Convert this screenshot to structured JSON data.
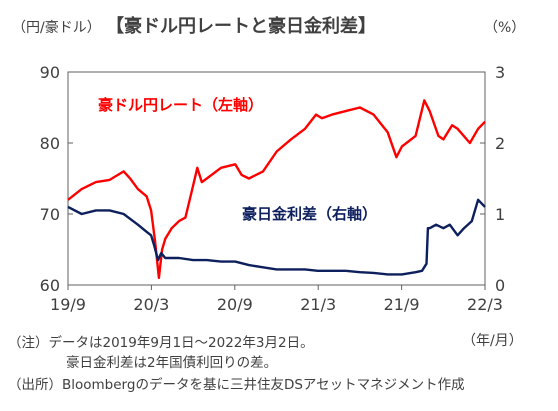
{
  "chart_data": {
    "type": "line",
    "title": "【豪ドル円レートと豪日金利差】",
    "left_unit": "（円/豪ドル）",
    "right_unit": "（%）",
    "x_unit": "（年/月）",
    "x_ticks": [
      "19/9",
      "20/3",
      "20/9",
      "21/3",
      "21/9",
      "22/3"
    ],
    "y_left_ticks": [
      "90",
      "80",
      "70",
      "60"
    ],
    "y_right_ticks": [
      "3",
      "2",
      "1",
      "0"
    ],
    "ylim_left": [
      60,
      90
    ],
    "ylim_right": [
      0,
      3
    ],
    "x_range": [
      "2019-09-01",
      "2022-03-02"
    ],
    "series": [
      {
        "name": "豪ドル円レート（左軸）",
        "axis": "left",
        "color": "#ff0000",
        "x": [
          "2019-09-01",
          "2019-10-01",
          "2019-11-01",
          "2019-12-01",
          "2020-01-01",
          "2020-01-15",
          "2020-02-01",
          "2020-02-20",
          "2020-03-01",
          "2020-03-10",
          "2020-03-18",
          "2020-03-25",
          "2020-04-01",
          "2020-04-15",
          "2020-05-01",
          "2020-05-15",
          "2020-06-01",
          "2020-06-10",
          "2020-06-20",
          "2020-07-01",
          "2020-08-01",
          "2020-09-01",
          "2020-09-15",
          "2020-10-01",
          "2020-11-01",
          "2020-12-01",
          "2021-01-01",
          "2021-02-01",
          "2021-02-25",
          "2021-03-10",
          "2021-04-01",
          "2021-05-01",
          "2021-06-01",
          "2021-07-01",
          "2021-08-01",
          "2021-08-20",
          "2021-09-01",
          "2021-10-01",
          "2021-10-20",
          "2021-11-01",
          "2021-11-20",
          "2021-12-01",
          "2021-12-20",
          "2022-01-01",
          "2022-01-28",
          "2022-02-15",
          "2022-03-02"
        ],
        "y": [
          72.0,
          73.5,
          74.5,
          74.8,
          76.0,
          75.0,
          73.5,
          72.5,
          70.5,
          66.0,
          61.0,
          65.0,
          66.5,
          68.0,
          69.0,
          69.5,
          74.0,
          76.5,
          74.5,
          75.0,
          76.5,
          77.0,
          75.5,
          75.0,
          76.0,
          78.8,
          80.5,
          82.0,
          84.0,
          83.5,
          84.0,
          84.5,
          85.0,
          84.0,
          81.5,
          78.0,
          79.5,
          81.0,
          86.0,
          84.5,
          81.0,
          80.5,
          82.5,
          82.0,
          80.0,
          82.0,
          83.0
        ]
      },
      {
        "name": "豪日金利差（右軸）",
        "axis": "right",
        "color": "#0d1f5c",
        "x": [
          "2019-09-01",
          "2019-10-01",
          "2019-11-01",
          "2019-12-01",
          "2020-01-01",
          "2020-02-01",
          "2020-02-20",
          "2020-03-01",
          "2020-03-08",
          "2020-03-16",
          "2020-03-23",
          "2020-04-01",
          "2020-05-01",
          "2020-06-01",
          "2020-07-01",
          "2020-08-01",
          "2020-09-01",
          "2020-10-01",
          "2020-11-01",
          "2020-12-01",
          "2021-01-01",
          "2021-02-01",
          "2021-03-01",
          "2021-04-01",
          "2021-05-01",
          "2021-06-01",
          "2021-07-01",
          "2021-08-01",
          "2021-09-01",
          "2021-10-01",
          "2021-10-15",
          "2021-10-25",
          "2021-10-28",
          "2021-11-01",
          "2021-11-15",
          "2021-12-01",
          "2021-12-15",
          "2022-01-01",
          "2022-01-15",
          "2022-02-01",
          "2022-02-15",
          "2022-03-02"
        ],
        "y": [
          1.1,
          1.0,
          1.05,
          1.05,
          1.0,
          0.85,
          0.75,
          0.7,
          0.55,
          0.35,
          0.45,
          0.38,
          0.38,
          0.35,
          0.35,
          0.33,
          0.33,
          0.28,
          0.25,
          0.22,
          0.22,
          0.22,
          0.2,
          0.2,
          0.2,
          0.18,
          0.17,
          0.15,
          0.15,
          0.18,
          0.2,
          0.3,
          0.8,
          0.8,
          0.85,
          0.8,
          0.85,
          0.7,
          0.8,
          0.9,
          1.2,
          1.1
        ]
      }
    ]
  },
  "notes": [
    "（注）データは2019年9月1日～2022年3月2日。",
    "豪日金利差は2年国債利回りの差。",
    "（出所）Bloombergのデータを基に三井住友DSアセットマネジメント作成"
  ]
}
